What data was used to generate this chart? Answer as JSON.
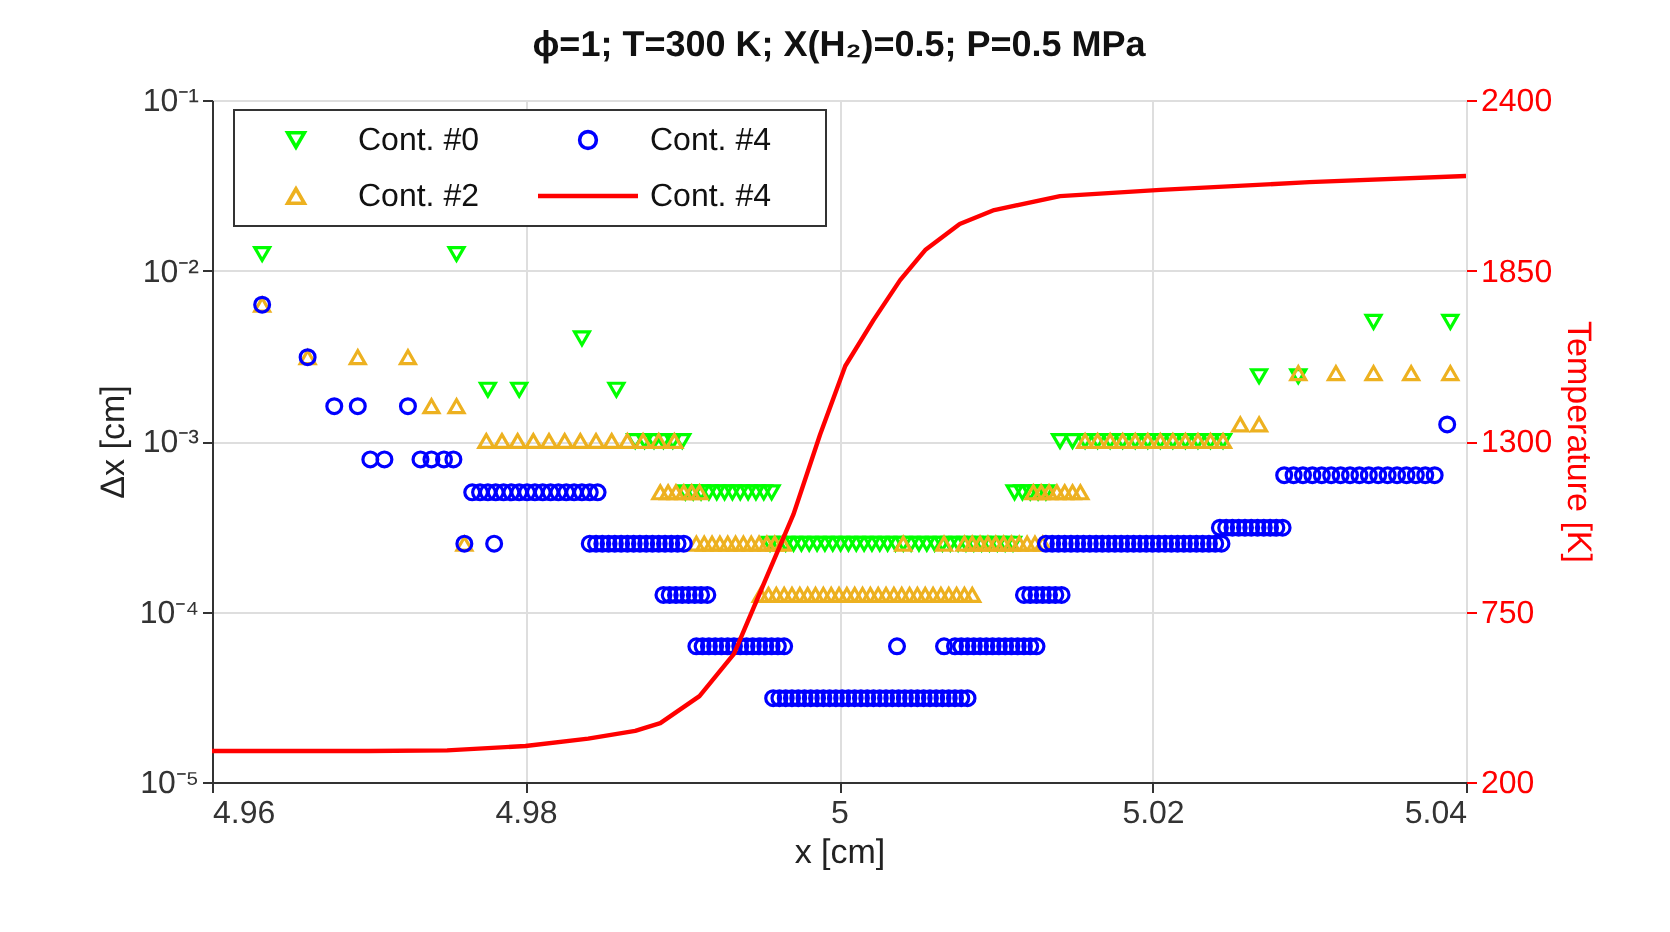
{
  "chart_data": {
    "type": "scatter",
    "title": "ϕ=1; T=300 K; X(H₂)=0.5; P=0.5 MPa",
    "xlabel": "x [cm]",
    "ylabel": "Δx [cm]",
    "y2label": "Temperature [K]",
    "xlim": [
      4.96,
      5.04
    ],
    "xticks": [
      4.96,
      4.98,
      5,
      5.02,
      5.04
    ],
    "ylim": [
      1e-05,
      0.1
    ],
    "yticks": [
      {
        "value": 1e-05,
        "label": "10⁻⁵"
      },
      {
        "value": 0.0001,
        "label": "10⁻⁴"
      },
      {
        "value": 0.001,
        "label": "10⁻³"
      },
      {
        "value": 0.01,
        "label": "10⁻²"
      },
      {
        "value": 0.1,
        "label": "10⁻¹"
      }
    ],
    "y2lim": [
      200,
      2400
    ],
    "y2ticks": [
      200,
      750,
      1300,
      1850,
      2400
    ],
    "log": "y",
    "grid": true,
    "legend": "top left",
    "series": [
      {
        "name": "Cont. #0",
        "marker": "triangle-down",
        "color": "#00ff00",
        "x": [
          4.9632,
          4.9756,
          4.9836,
          4.9776,
          4.9796,
          4.9858,
          4.987,
          4.9876,
          4.9882,
          4.9888,
          4.9894,
          4.99,
          4.9902,
          4.9907,
          4.9912,
          4.9917,
          4.9922,
          4.9927,
          4.9932,
          4.9937,
          4.9942,
          4.9947,
          4.9952,
          4.9957,
          4.9956,
          4.9961,
          4.9966,
          4.9971,
          4.9976,
          4.9981,
          4.9986,
          4.9991,
          4.9996,
          5.0001,
          5.0006,
          5.0011,
          5.0016,
          5.0021,
          5.0026,
          5.0031,
          5.0036,
          5.0041,
          5.0046,
          5.0051,
          5.0056,
          5.0061,
          5.0066,
          5.0071,
          5.0076,
          5.0081,
          5.0086,
          5.0091,
          5.0096,
          5.0101,
          5.0106,
          5.0111,
          5.0112,
          5.0117,
          5.0122,
          5.0127,
          5.0132,
          5.0141,
          5.0149,
          5.0157,
          5.0165,
          5.0173,
          5.0181,
          5.0189,
          5.0197,
          5.0205,
          5.0213,
          5.0221,
          5.0229,
          5.0237,
          5.0245,
          5.0268,
          5.0293,
          5.0341,
          5.039
        ],
        "values": [
          0.0125,
          0.0125,
          0.004,
          0.002,
          0.002,
          0.002,
          0.001,
          0.001,
          0.001,
          0.001,
          0.001,
          0.001,
          0.0005,
          0.0005,
          0.0005,
          0.0005,
          0.0005,
          0.0005,
          0.0005,
          0.0005,
          0.0005,
          0.0005,
          0.0005,
          0.0005,
          0.00025,
          0.00025,
          0.00025,
          0.00025,
          0.00025,
          0.00025,
          0.00025,
          0.00025,
          0.00025,
          0.00025,
          0.00025,
          0.00025,
          0.00025,
          0.00025,
          0.00025,
          0.00025,
          0.00025,
          0.00025,
          0.00025,
          0.00025,
          0.00025,
          0.00025,
          0.00025,
          0.00025,
          0.00025,
          0.00025,
          0.00025,
          0.00025,
          0.00025,
          0.00025,
          0.00025,
          0.00025,
          0.0005,
          0.0005,
          0.0005,
          0.0005,
          0.0005,
          0.001,
          0.001,
          0.001,
          0.001,
          0.001,
          0.001,
          0.001,
          0.001,
          0.001,
          0.001,
          0.001,
          0.001,
          0.001,
          0.001,
          0.0024,
          0.0024,
          0.005,
          0.005
        ]
      },
      {
        "name": "Cont. #2",
        "marker": "triangle",
        "color": "#edb120",
        "x": [
          4.9632,
          4.9661,
          4.9693,
          4.9725,
          4.974,
          4.9756,
          4.9761,
          4.9775,
          4.9785,
          4.9795,
          4.9805,
          4.9815,
          4.9825,
          4.9835,
          4.9845,
          4.9855,
          4.9865,
          4.9875,
          4.9885,
          4.9895,
          4.9886,
          4.9891,
          4.9896,
          4.9901,
          4.9906,
          4.9911,
          4.9909,
          4.9914,
          4.9919,
          4.9924,
          4.9929,
          4.9934,
          4.9939,
          4.9944,
          4.9949,
          4.9954,
          4.9959,
          4.9964,
          5.0041,
          5.0067,
          5.008,
          5.0085,
          5.009,
          5.0095,
          5.01,
          5.0105,
          5.011,
          5.0115,
          5.012,
          5.0125,
          5.013,
          4.995,
          4.9955,
          4.996,
          4.9965,
          4.997,
          4.9975,
          4.998,
          4.9985,
          4.999,
          4.9995,
          5.0,
          5.0005,
          5.001,
          5.0015,
          5.002,
          5.0025,
          5.003,
          5.0035,
          5.004,
          5.0045,
          5.005,
          5.0055,
          5.006,
          5.0065,
          5.007,
          5.0075,
          5.008,
          5.0085,
          5.0124,
          5.0129,
          5.0134,
          5.0139,
          5.0144,
          5.0149,
          5.0154,
          5.0157,
          5.0165,
          5.0173,
          5.0181,
          5.0189,
          5.0197,
          5.0205,
          5.0213,
          5.0221,
          5.0229,
          5.0237,
          5.0245,
          5.0256,
          5.0268,
          5.0293,
          5.0317,
          5.0341,
          5.0365,
          5.039
        ],
        "values": [
          0.0063,
          0.0031,
          0.0031,
          0.0031,
          0.0016,
          0.0016,
          0.00025,
          0.001,
          0.001,
          0.001,
          0.001,
          0.001,
          0.001,
          0.001,
          0.001,
          0.001,
          0.001,
          0.001,
          0.001,
          0.001,
          0.0005,
          0.0005,
          0.0005,
          0.0005,
          0.0005,
          0.0005,
          0.00025,
          0.00025,
          0.00025,
          0.00025,
          0.00025,
          0.00025,
          0.00025,
          0.00025,
          0.00025,
          0.00025,
          0.00025,
          0.00025,
          0.00025,
          0.00025,
          0.00025,
          0.00025,
          0.00025,
          0.00025,
          0.00025,
          0.00025,
          0.00025,
          0.00025,
          0.00025,
          0.00025,
          0.00025,
          0.000125,
          0.000125,
          0.000125,
          0.000125,
          0.000125,
          0.000125,
          0.000125,
          0.000125,
          0.000125,
          0.000125,
          0.000125,
          0.000125,
          0.000125,
          0.000125,
          0.000125,
          0.000125,
          0.000125,
          0.000125,
          0.000125,
          0.000125,
          0.000125,
          0.000125,
          0.000125,
          0.000125,
          0.000125,
          0.000125,
          0.000125,
          0.000125,
          0.0005,
          0.0005,
          0.0005,
          0.0005,
          0.0005,
          0.0005,
          0.0005,
          0.001,
          0.001,
          0.001,
          0.001,
          0.001,
          0.001,
          0.001,
          0.001,
          0.001,
          0.001,
          0.001,
          0.001,
          0.00125,
          0.00125,
          0.0025,
          0.0025,
          0.0025,
          0.0025,
          0.0025
        ]
      },
      {
        "name": "Cont. #4",
        "marker": "circle",
        "color": "#0000ff",
        "x": [
          4.9632,
          4.9661,
          4.9678,
          4.9693,
          4.9725,
          4.9701,
          4.971,
          4.9733,
          4.974,
          4.9748,
          4.9754,
          4.9766,
          4.9771,
          4.9776,
          4.9781,
          4.9786,
          4.9791,
          4.9796,
          4.9801,
          4.9806,
          4.9811,
          4.9816,
          4.9821,
          4.9826,
          4.9831,
          4.9836,
          4.9841,
          4.9846,
          4.9761,
          4.978,
          4.9841,
          4.9845,
          4.9849,
          4.9853,
          4.9857,
          4.9861,
          4.9865,
          4.9869,
          4.9873,
          4.9877,
          4.9881,
          4.9885,
          4.9889,
          4.9893,
          4.9897,
          4.9901,
          4.9888,
          4.9892,
          4.9896,
          4.99,
          4.9904,
          4.9908,
          4.9912,
          4.9916,
          4.9909,
          4.9913,
          4.9917,
          4.9921,
          4.9925,
          4.9929,
          4.9933,
          4.9937,
          4.9941,
          4.9945,
          4.9949,
          4.9953,
          4.9957,
          4.9961,
          4.9965,
          5.0037,
          5.0067,
          5.0074,
          5.0078,
          5.0082,
          5.0086,
          5.009,
          5.0094,
          5.0098,
          5.0102,
          5.0106,
          5.011,
          5.0114,
          5.0118,
          5.0122,
          5.0126,
          4.9958,
          4.9962,
          4.9966,
          4.997,
          4.9974,
          4.9978,
          4.9982,
          4.9986,
          4.999,
          4.9994,
          4.9998,
          5.0002,
          5.0006,
          5.001,
          5.0014,
          5.0018,
          5.0022,
          5.0026,
          5.003,
          5.0034,
          5.0038,
          5.0042,
          5.0046,
          5.005,
          5.0054,
          5.0058,
          5.0062,
          5.0066,
          5.007,
          5.0074,
          5.0078,
          5.0082,
          5.0118,
          5.0122,
          5.0126,
          5.013,
          5.0134,
          5.0138,
          5.0142,
          5.0132,
          5.0136,
          5.014,
          5.0144,
          5.0148,
          5.0152,
          5.0156,
          5.016,
          5.0164,
          5.0168,
          5.0172,
          5.0176,
          5.018,
          5.0184,
          5.0188,
          5.0192,
          5.0196,
          5.02,
          5.0204,
          5.0208,
          5.0212,
          5.0216,
          5.022,
          5.0224,
          5.0228,
          5.0232,
          5.0236,
          5.024,
          5.0244,
          5.0243,
          5.0247,
          5.0251,
          5.0255,
          5.0259,
          5.0263,
          5.0267,
          5.0271,
          5.0275,
          5.0279,
          5.0283,
          5.0284,
          5.029,
          5.0296,
          5.0302,
          5.0308,
          5.0314,
          5.032,
          5.0326,
          5.0332,
          5.0338,
          5.0344,
          5.035,
          5.0356,
          5.0362,
          5.0368,
          5.0374,
          5.038,
          5.0388
        ],
        "values": [
          0.0063,
          0.0031,
          0.0016,
          0.0016,
          0.0016,
          0.00078,
          0.00078,
          0.00078,
          0.00078,
          0.00078,
          0.00078,
          0.0005,
          0.0005,
          0.0005,
          0.0005,
          0.0005,
          0.0005,
          0.0005,
          0.0005,
          0.0005,
          0.0005,
          0.0005,
          0.0005,
          0.0005,
          0.0005,
          0.0005,
          0.0005,
          0.0005,
          0.00025,
          0.00025,
          0.00025,
          0.00025,
          0.00025,
          0.00025,
          0.00025,
          0.00025,
          0.00025,
          0.00025,
          0.00025,
          0.00025,
          0.00025,
          0.00025,
          0.00025,
          0.00025,
          0.00025,
          0.00025,
          0.000125,
          0.000125,
          0.000125,
          0.000125,
          0.000125,
          0.000125,
          0.000125,
          0.000125,
          6.25e-05,
          6.25e-05,
          6.25e-05,
          6.25e-05,
          6.25e-05,
          6.25e-05,
          6.25e-05,
          6.25e-05,
          6.25e-05,
          6.25e-05,
          6.25e-05,
          6.25e-05,
          6.25e-05,
          6.25e-05,
          6.25e-05,
          6.25e-05,
          6.25e-05,
          6.25e-05,
          6.25e-05,
          6.25e-05,
          6.25e-05,
          6.25e-05,
          6.25e-05,
          6.25e-05,
          6.25e-05,
          6.25e-05,
          6.25e-05,
          6.25e-05,
          6.25e-05,
          6.25e-05,
          6.25e-05,
          3.1e-05,
          3.1e-05,
          3.1e-05,
          3.1e-05,
          3.1e-05,
          3.1e-05,
          3.1e-05,
          3.1e-05,
          3.1e-05,
          3.1e-05,
          3.1e-05,
          3.1e-05,
          3.1e-05,
          3.1e-05,
          3.1e-05,
          3.1e-05,
          3.1e-05,
          3.1e-05,
          3.1e-05,
          3.1e-05,
          3.1e-05,
          3.1e-05,
          3.1e-05,
          3.1e-05,
          3.1e-05,
          3.1e-05,
          3.1e-05,
          3.1e-05,
          3.1e-05,
          3.1e-05,
          3.1e-05,
          3.1e-05,
          0.000125,
          0.000125,
          0.000125,
          0.000125,
          0.000125,
          0.000125,
          0.000125,
          0.00025,
          0.00025,
          0.00025,
          0.00025,
          0.00025,
          0.00025,
          0.00025,
          0.00025,
          0.00025,
          0.00025,
          0.00025,
          0.00025,
          0.00025,
          0.00025,
          0.00025,
          0.00025,
          0.00025,
          0.00025,
          0.00025,
          0.00025,
          0.00025,
          0.00025,
          0.00025,
          0.00025,
          0.00025,
          0.00025,
          0.00025,
          0.00025,
          0.00025,
          0.00031,
          0.00031,
          0.00031,
          0.00031,
          0.00031,
          0.00031,
          0.00031,
          0.00031,
          0.00031,
          0.00031,
          0.00031,
          0.00063,
          0.00063,
          0.00063,
          0.00063,
          0.00063,
          0.00063,
          0.00063,
          0.00063,
          0.00063,
          0.00063,
          0.00063,
          0.00063,
          0.00063,
          0.00063,
          0.00063,
          0.00063,
          0.00063,
          0.00125
        ]
      },
      {
        "name": "Cont. #4",
        "type": "line",
        "axis": "y2",
        "marker": "none",
        "line_style": "solid",
        "color": "#ff0000",
        "x": [
          4.96,
          4.97,
          4.975,
          4.98,
          4.984,
          4.987,
          4.9886,
          4.9911,
          4.9933,
          4.9953,
          4.9971,
          4.9988,
          5.0004,
          5.0022,
          5.0039,
          5.0055,
          5.0077,
          5.0099,
          5.0141,
          5.0205,
          5.03,
          5.04
        ],
        "values": [
          300,
          300,
          302,
          316,
          340,
          365,
          390,
          477,
          613,
          851,
          1064,
          1322,
          1542,
          1690,
          1819,
          1916,
          2000,
          2045,
          2090,
          2110,
          2135,
          2155
        ]
      }
    ]
  }
}
